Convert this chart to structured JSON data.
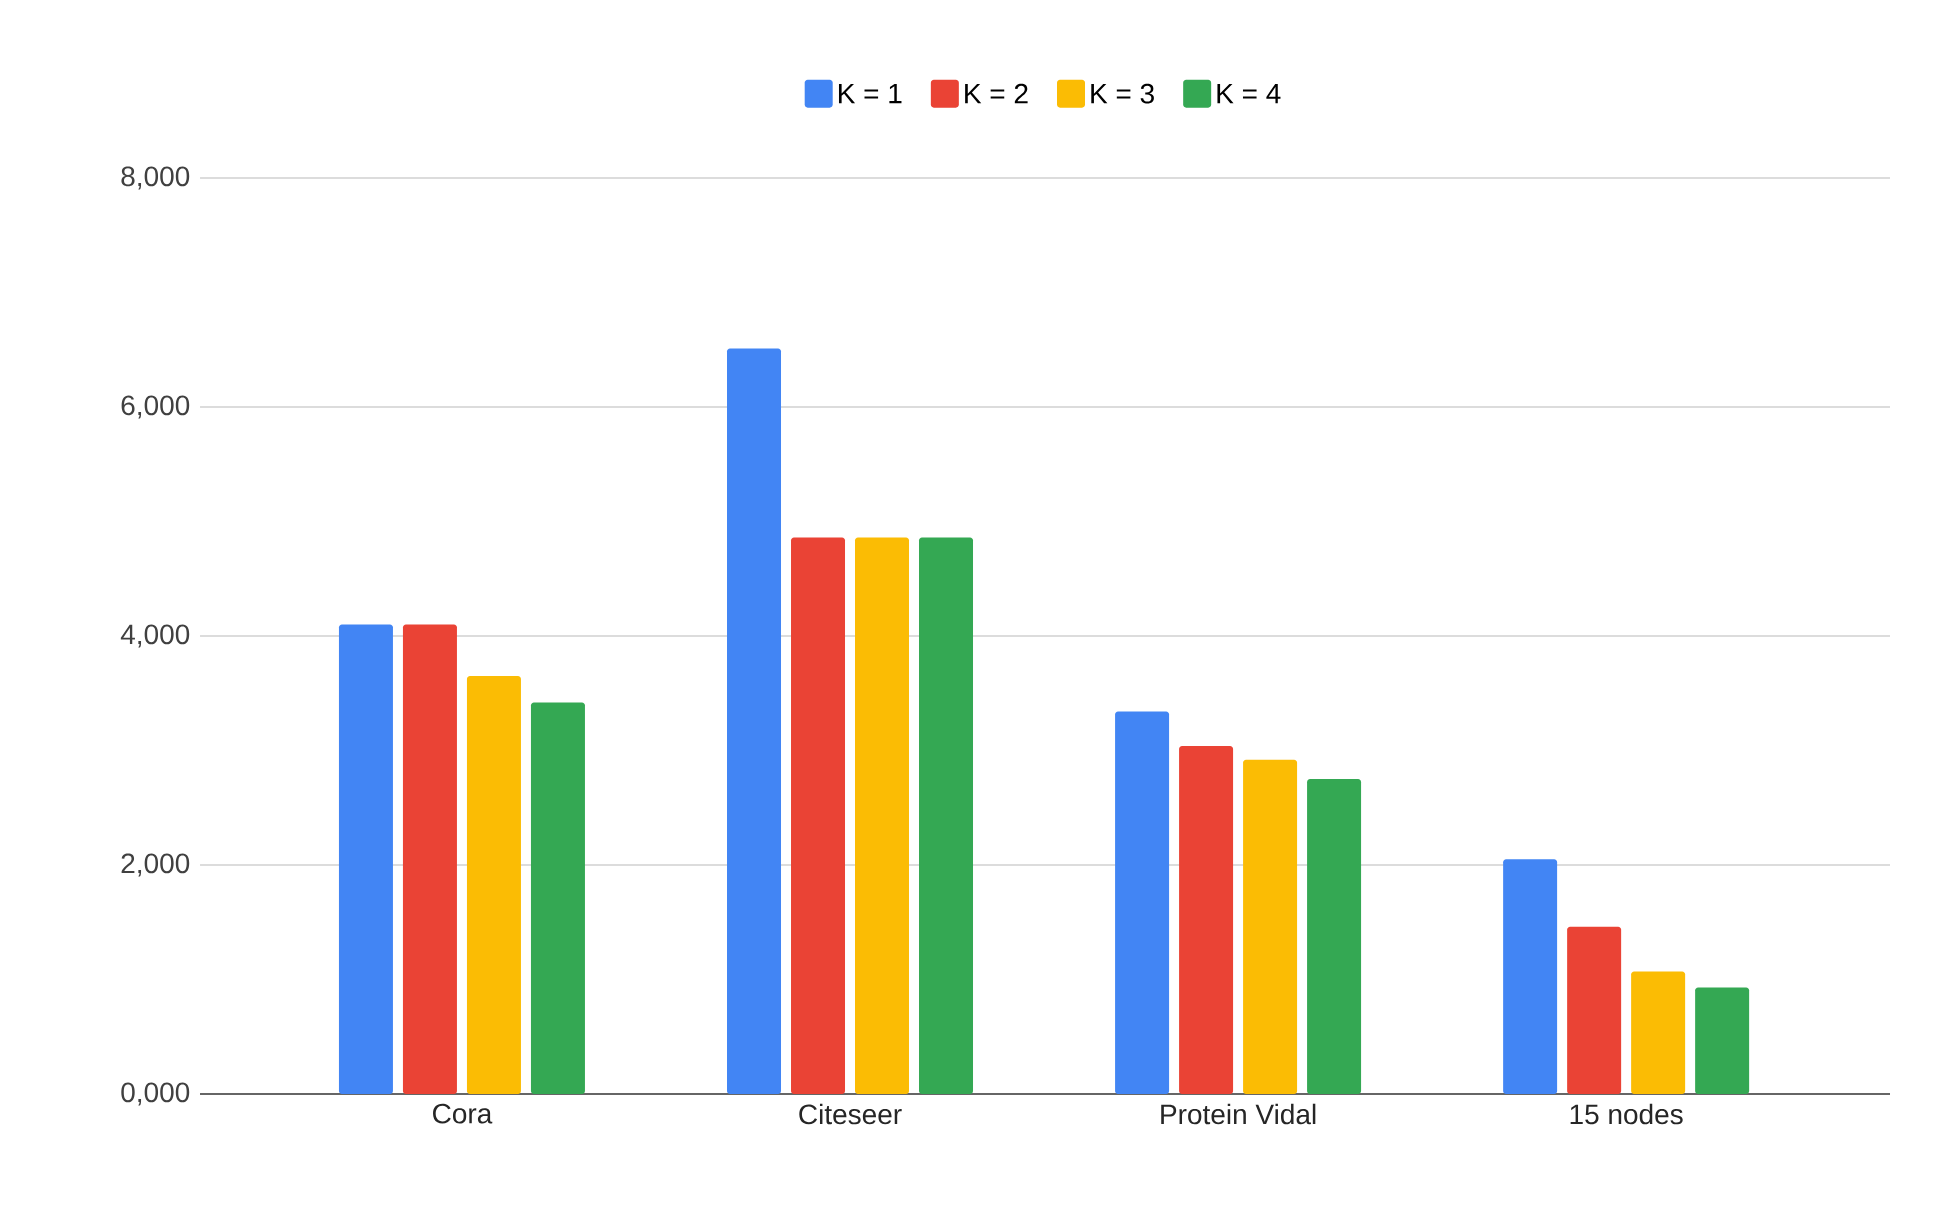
{
  "chart_data": {
    "type": "bar",
    "categories": [
      "Cora",
      "Citeseer",
      "Protein Vidal",
      "15 nodes"
    ],
    "series": [
      {
        "name": "K = 1",
        "color": "#4285f4",
        "values": [
          4100,
          6510,
          3340,
          2050
        ]
      },
      {
        "name": "K = 2",
        "color": "#ea4335",
        "values": [
          4100,
          4860,
          3040,
          1460
        ]
      },
      {
        "name": "K = 3",
        "color": "#fbbc04",
        "values": [
          3650,
          4860,
          2920,
          1070
        ]
      },
      {
        "name": "K = 4",
        "color": "#34a853",
        "values": [
          3420,
          4860,
          2750,
          930
        ]
      }
    ],
    "ylim": [
      0,
      8000
    ],
    "yticks": [
      {
        "value": 0,
        "label": "0,000"
      },
      {
        "value": 2000,
        "label": "2,000"
      },
      {
        "value": 4000,
        "label": "4,000"
      },
      {
        "value": 6000,
        "label": "6,000"
      },
      {
        "value": 8000,
        "label": "8,000"
      }
    ],
    "grid": "y",
    "legend": "top"
  }
}
